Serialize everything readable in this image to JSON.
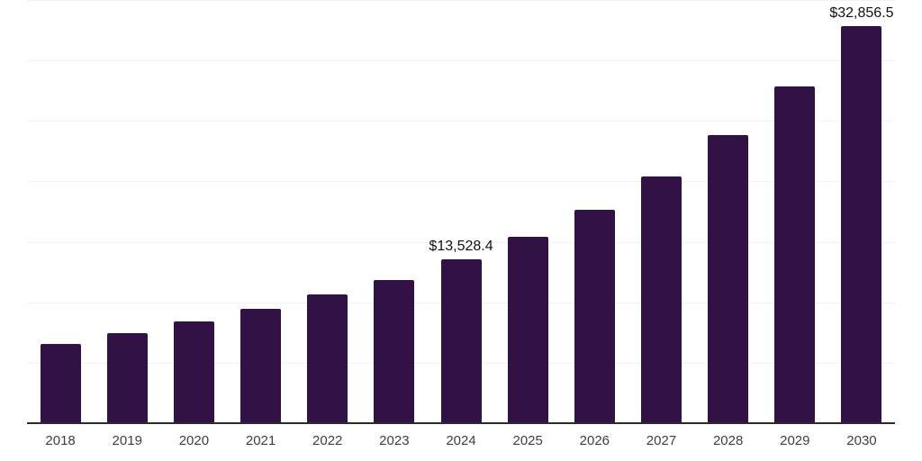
{
  "chart_data": {
    "type": "bar",
    "title": "",
    "xlabel": "",
    "ylabel": "",
    "categories": [
      "2018",
      "2019",
      "2020",
      "2021",
      "2022",
      "2023",
      "2024",
      "2025",
      "2026",
      "2027",
      "2028",
      "2029",
      "2030"
    ],
    "values": [
      6560,
      7460,
      8430,
      9470,
      10670,
      11860,
      13528.4,
      15440,
      17680,
      20440,
      23800,
      27830,
      32856.5
    ],
    "annotations": [
      {
        "category": "2024",
        "text": "$13,528.4"
      },
      {
        "category": "2030",
        "text": "$32,856.5"
      }
    ],
    "ylim": [
      0,
      35000
    ],
    "gridline_step": 5000,
    "grid": true,
    "legend": false,
    "y_axis_labels_visible": false,
    "colors": {
      "bar": "#321245",
      "gridline": "#f2f2f2",
      "axis_line": "#2b2b2b",
      "tick_label": "#404040",
      "annotation": "#111111",
      "background": "#ffffff"
    }
  }
}
